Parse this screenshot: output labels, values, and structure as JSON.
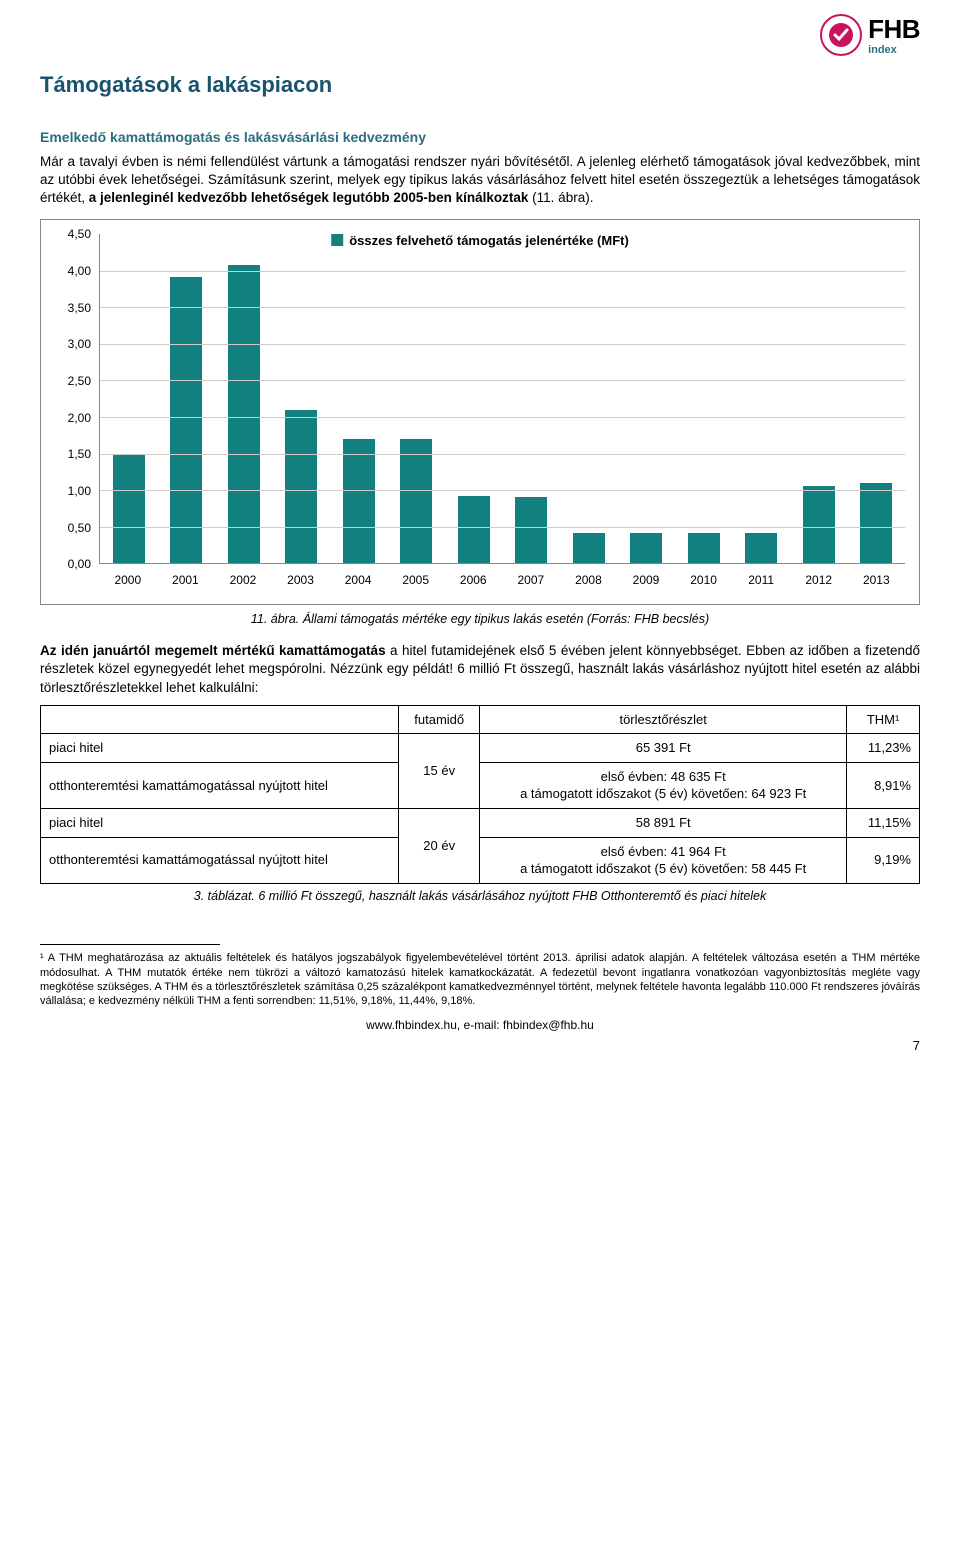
{
  "logo": {
    "brand": "FHB",
    "sub": "index"
  },
  "title": "Támogatások a lakáspiacon",
  "subhead": "Emelkedő kamattámogatás és lakásvásárlási kedvezmény",
  "para1a": "Már a tavalyi évben is némi fellendülést vártunk a támogatási rendszer nyári bővítésétől. A jelenleg elérhető támogatások jóval kedvezőbbek, mint az utóbbi évek lehetőségei. Számításunk szerint, melyek egy tipikus lakás vásárlásához felvett hitel esetén összegeztük a lehetséges támogatások értékét, ",
  "para1b": "a jelenleginél kedvezőbb lehetőségek legutóbb 2005-ben kínálkoztak",
  "para1c": " (11. ábra).",
  "chart": {
    "legend": "összes felvehető támogatás jelenértéke (MFt)",
    "bar_color": "#12807f",
    "border_color": "#888888",
    "gridline_color": "#cccccc",
    "ymax": 4.5,
    "ystep": 0.5,
    "categories": [
      "2000",
      "2001",
      "2002",
      "2003",
      "2004",
      "2005",
      "2006",
      "2007",
      "2008",
      "2009",
      "2010",
      "2011",
      "2012",
      "2013"
    ],
    "values": [
      1.5,
      3.92,
      4.08,
      2.1,
      1.7,
      1.7,
      0.92,
      0.9,
      0.42,
      0.42,
      0.42,
      0.42,
      1.05,
      1.1
    ]
  },
  "chart_caption": "11. ábra. Állami támogatás mértéke egy tipikus lakás esetén (Forrás: FHB becslés)",
  "para2a": "Az idén januártól megemelt mértékű kamattámogatás",
  "para2b": " a hitel futamidejének első 5 évében jelent könnyebbséget. Ebben az időben a fizetendő részletek közel egynegyedét lehet megspórolni. Nézzünk egy példát! 6 millió Ft összegű, használt lakás vásárláshoz nyújtott hitel esetén az alábbi törlesztőrészletekkel lehet kalkulálni:",
  "table": {
    "head": {
      "c1": "",
      "c2": "futamidő",
      "c3": "törlesztőrészlet",
      "c4": "THM¹"
    },
    "rows": [
      {
        "label": "piaci hitel",
        "futamido": "15 év",
        "torleszto": "65 391 Ft",
        "thm": "11,23%"
      },
      {
        "label": "otthonteremtési kamattámogatással nyújtott hitel",
        "futamido": "",
        "torleszto": "első évben: 48 635 Ft\na támogatott időszakot (5 év) követően: 64 923 Ft",
        "thm": "8,91%"
      },
      {
        "label": "piaci hitel",
        "futamido": "20 év",
        "torleszto": "58 891 Ft",
        "thm": "11,15%"
      },
      {
        "label": "otthonteremtési kamattámogatással nyújtott hitel",
        "futamido": "",
        "torleszto": "első évben: 41 964 Ft\na támogatott időszakot (5 év) követően: 58 445 Ft",
        "thm": "9,19%"
      }
    ]
  },
  "table_caption": "3. táblázat. 6 millió Ft összegű, használt lakás vásárlásához nyújtott FHB Otthonteremtő és piaci hitelek",
  "footnote": "¹ A THM meghatározása az aktuális feltételek és hatályos jogszabályok figyelembevételével történt 2013. áprilisi adatok alapján. A feltételek változása esetén a THM mértéke módosulhat. A THM mutatók értéke nem tükrözi a változó kamatozású hitelek kamatkockázatát. A fedezetül bevont ingatlanra vonatkozóan vagyonbiztosítás megléte vagy megkötése szükséges. A THM és a törlesztőrészletek számítása 0,25 százalékpont kamatkedvezménnyel történt, melynek feltétele havonta legalább 110.000 Ft rendszeres jóváírás vállalása; e kedvezmény nélküli THM a fenti sorrendben: 11,51%, 9,18%, 11,44%, 9,18%.",
  "footer": "www.fhbindex.hu, e-mail: fhbindex@fhb.hu",
  "page_number": "7"
}
